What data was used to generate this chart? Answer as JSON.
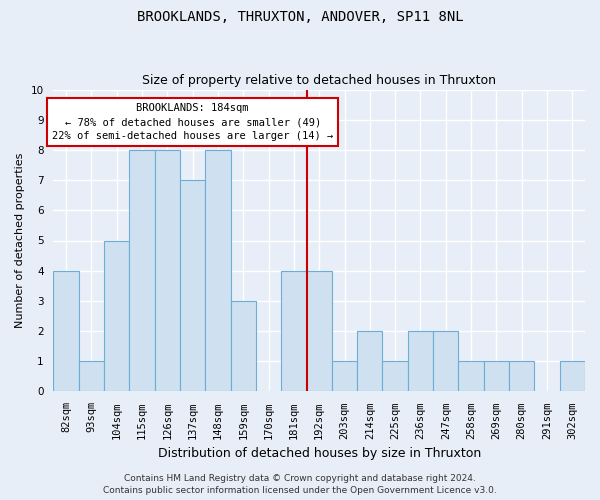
{
  "title": "BROOKLANDS, THRUXTON, ANDOVER, SP11 8NL",
  "subtitle": "Size of property relative to detached houses in Thruxton",
  "xlabel": "Distribution of detached houses by size in Thruxton",
  "ylabel": "Number of detached properties",
  "footer1": "Contains HM Land Registry data © Crown copyright and database right 2024.",
  "footer2": "Contains public sector information licensed under the Open Government Licence v3.0.",
  "categories": [
    "82sqm",
    "93sqm",
    "104sqm",
    "115sqm",
    "126sqm",
    "137sqm",
    "148sqm",
    "159sqm",
    "170sqm",
    "181sqm",
    "192sqm",
    "203sqm",
    "214sqm",
    "225sqm",
    "236sqm",
    "247sqm",
    "258sqm",
    "269sqm",
    "280sqm",
    "291sqm",
    "302sqm"
  ],
  "values": [
    4,
    1,
    5,
    8,
    8,
    7,
    8,
    3,
    0,
    4,
    4,
    1,
    2,
    1,
    2,
    2,
    1,
    1,
    1,
    0,
    1
  ],
  "bar_color": "#cfe0f0",
  "bar_edge_color": "#6aaed6",
  "annotation_line1": "BROOKLANDS: 184sqm",
  "annotation_line2": "← 78% of detached houses are smaller (49)",
  "annotation_line3": "22% of semi-detached houses are larger (14) →",
  "vline_x": 9.5,
  "vline_color": "#cc0000",
  "annotation_box_color": "#ffffff",
  "annotation_box_edge_color": "#cc0000",
  "ylim": [
    0,
    10
  ],
  "yticks": [
    0,
    1,
    2,
    3,
    4,
    5,
    6,
    7,
    8,
    9,
    10
  ],
  "background_color": "#e8eef7",
  "grid_color": "#ffffff",
  "title_fontsize": 10,
  "subtitle_fontsize": 9,
  "xlabel_fontsize": 9,
  "ylabel_fontsize": 8,
  "tick_fontsize": 7.5,
  "annotation_fontsize": 7.5,
  "footer_fontsize": 6.5
}
